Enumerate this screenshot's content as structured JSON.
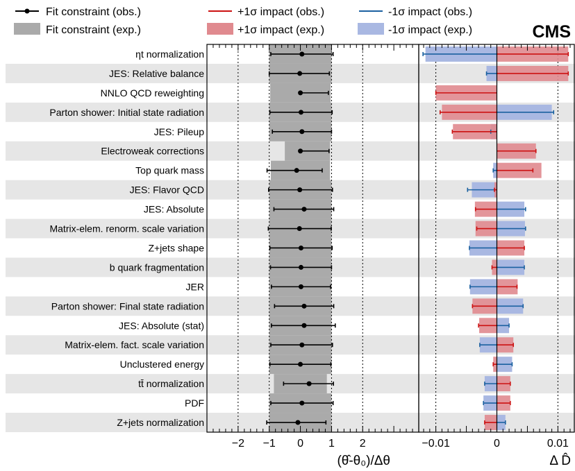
{
  "brand": "CMS",
  "legend": {
    "fit_obs": "Fit constraint (obs.)",
    "fit_exp": "Fit constraint (exp.)",
    "plus_obs": "+1σ impact (obs.)",
    "plus_exp": "+1σ impact (exp.)",
    "minus_obs": "-1σ impact (obs.)",
    "minus_exp": "-1σ impact (exp.)"
  },
  "colors": {
    "row_band": "#e6e6e6",
    "fit_exp": "#aaaaaa",
    "fit_obs": "#000000",
    "plus_obs": "#cc1111",
    "plus_exp": "#e08a8f",
    "minus_obs": "#1a60a0",
    "minus_exp": "#a9b8e2"
  },
  "chart_data": [
    {
      "type": "pull",
      "xlabel": "(θ̂-θ₀)/Δθ",
      "xlim": [
        -3,
        3.8
      ],
      "xticks": [
        -2,
        -1,
        0,
        1,
        2
      ],
      "grid_dotted_at": [
        -2,
        -1,
        1,
        2
      ],
      "parameters": [
        {
          "label": "ηt normalization",
          "pull": 0.05,
          "err_lo": 1.0,
          "err_hi": 1.0,
          "exp_lo": -1.0,
          "exp_hi": 1.0
        },
        {
          "label": "JES: Relative balance",
          "pull": -0.02,
          "err_lo": 0.98,
          "err_hi": 0.95,
          "exp_lo": -1.0,
          "exp_hi": 1.0
        },
        {
          "label": "NNLO QCD reweighting",
          "pull": 0.0,
          "err_lo": 0.0,
          "err_hi": 0.9,
          "exp_lo": -0.97,
          "exp_hi": 0.97
        },
        {
          "label": "Parton shower: Initial state radiation",
          "pull": 0.02,
          "err_lo": 1.0,
          "err_hi": 1.0,
          "exp_lo": -1.0,
          "exp_hi": 1.0
        },
        {
          "label": "JES: Pileup",
          "pull": 0.05,
          "err_lo": 0.95,
          "err_hi": 0.95,
          "exp_lo": -1.0,
          "exp_hi": 1.0
        },
        {
          "label": "Electroweak corrections",
          "pull": 0.0,
          "err_lo": 0.0,
          "err_hi": 0.92,
          "exp_lo": -0.5,
          "exp_hi": 0.95
        },
        {
          "label": "Top quark mass",
          "pull": -0.12,
          "err_lo": 0.95,
          "err_hi": 0.82,
          "exp_lo": -0.95,
          "exp_hi": 0.95
        },
        {
          "label": "JES: Flavor QCD",
          "pull": -0.02,
          "err_lo": 1.0,
          "err_hi": 1.05,
          "exp_lo": -1.0,
          "exp_hi": 1.0
        },
        {
          "label": "JES: Absolute",
          "pull": 0.12,
          "err_lo": 0.97,
          "err_hi": 0.95,
          "exp_lo": -1.0,
          "exp_hi": 1.0
        },
        {
          "label": "Matrix-elem. renorm. scale variation",
          "pull": -0.03,
          "err_lo": 1.0,
          "err_hi": 1.02,
          "exp_lo": -1.0,
          "exp_hi": 1.0
        },
        {
          "label": "Z+jets shape",
          "pull": 0.02,
          "err_lo": 1.0,
          "err_hi": 1.0,
          "exp_lo": -1.0,
          "exp_hi": 1.0
        },
        {
          "label": "b quark fragmentation",
          "pull": 0.02,
          "err_lo": 0.98,
          "err_hi": 0.98,
          "exp_lo": -1.0,
          "exp_hi": 1.0
        },
        {
          "label": "JER",
          "pull": 0.02,
          "err_lo": 0.95,
          "err_hi": 0.95,
          "exp_lo": -1.0,
          "exp_hi": 1.0
        },
        {
          "label": "Parton shower: Final state radiation",
          "pull": 0.12,
          "err_lo": 0.95,
          "err_hi": 0.95,
          "exp_lo": -1.0,
          "exp_hi": 1.0
        },
        {
          "label": "JES: Absolute (stat)",
          "pull": 0.12,
          "err_lo": 1.05,
          "err_hi": 1.0,
          "exp_lo": -1.0,
          "exp_hi": 1.0
        },
        {
          "label": "Matrix-elem. fact. scale variation",
          "pull": 0.05,
          "err_lo": 1.0,
          "err_hi": 0.98,
          "exp_lo": -1.0,
          "exp_hi": 1.0
        },
        {
          "label": "Unclustered energy",
          "pull": 0.0,
          "err_lo": 0.98,
          "err_hi": 0.98,
          "exp_lo": -1.0,
          "exp_hi": 1.0
        },
        {
          "label": "tt̄ normalization",
          "pull": 0.28,
          "err_lo": 0.82,
          "err_hi": 0.78,
          "exp_lo": -0.85,
          "exp_hi": 0.85
        },
        {
          "label": "PDF",
          "pull": 0.05,
          "err_lo": 1.0,
          "err_hi": 1.0,
          "exp_lo": -1.0,
          "exp_hi": 1.0
        },
        {
          "label": "Z+jets normalization",
          "pull": -0.08,
          "err_lo": 1.0,
          "err_hi": 0.9,
          "exp_lo": -1.0,
          "exp_hi": 1.0
        }
      ]
    },
    {
      "type": "impact",
      "xlabel": "Δ D̂",
      "xlim": [
        -0.0128,
        0.0128
      ],
      "xticks": [
        -0.01,
        0,
        0.01
      ],
      "xtick_labels": [
        "−0.01",
        "0",
        "0.01"
      ],
      "grid_dotted_at": [
        -0.01,
        0.01
      ],
      "impacts": [
        {
          "plus_exp": 0.0117,
          "minus_exp": -0.0117,
          "plus_obs": 0.0117,
          "minus_obs": -0.0121
        },
        {
          "plus_exp": 0.0117,
          "minus_exp": -0.0017,
          "plus_obs": 0.0117,
          "minus_obs": -0.0017
        },
        {
          "plus_exp": -0.01,
          "minus_exp": 0,
          "plus_obs": -0.01,
          "minus_obs": 0
        },
        {
          "plus_exp": -0.009,
          "minus_exp": 0.009,
          "plus_obs": -0.0093,
          "minus_obs": 0.0093
        },
        {
          "plus_exp": -0.0072,
          "minus_exp": -0.001,
          "plus_obs": -0.0073,
          "minus_obs": -0.001
        },
        {
          "plus_exp": 0.0064,
          "minus_exp": 0,
          "plus_obs": 0.0064,
          "minus_obs": 0
        },
        {
          "plus_exp": 0.0073,
          "minus_exp": -0.0006,
          "plus_obs": 0.0059,
          "minus_obs": -0.0006
        },
        {
          "plus_exp": -0.0004,
          "minus_exp": -0.0041,
          "plus_obs": -0.0004,
          "minus_obs": -0.0048
        },
        {
          "plus_exp": -0.0036,
          "minus_exp": 0.0045,
          "plus_obs": -0.0035,
          "minus_obs": 0.0047
        },
        {
          "plus_exp": -0.0035,
          "minus_exp": 0.0046,
          "plus_obs": -0.0033,
          "minus_obs": 0.0047
        },
        {
          "plus_exp": 0.0045,
          "minus_exp": -0.0045,
          "plus_obs": 0.0045,
          "minus_obs": -0.0045
        },
        {
          "plus_exp": -0.0008,
          "minus_exp": 0.0045,
          "plus_obs": -0.0008,
          "minus_obs": 0.0045
        },
        {
          "plus_exp": 0.0034,
          "minus_exp": -0.0044,
          "plus_obs": 0.0033,
          "minus_obs": -0.0044
        },
        {
          "plus_exp": -0.004,
          "minus_exp": 0.0043,
          "plus_obs": -0.004,
          "minus_obs": 0.0043
        },
        {
          "plus_exp": -0.0029,
          "minus_exp": 0.002,
          "plus_obs": -0.003,
          "minus_obs": 0.002
        },
        {
          "plus_exp": 0.0027,
          "minus_exp": -0.0028,
          "plus_obs": 0.0027,
          "minus_obs": -0.0028
        },
        {
          "plus_exp": -0.0006,
          "minus_exp": 0.0025,
          "plus_obs": -0.0006,
          "minus_obs": 0.0025
        },
        {
          "plus_exp": 0.0022,
          "minus_exp": -0.002,
          "plus_obs": 0.0022,
          "minus_obs": -0.002
        },
        {
          "plus_exp": 0.0022,
          "minus_exp": -0.0022,
          "plus_obs": 0.0022,
          "minus_obs": -0.0022
        },
        {
          "plus_exp": -0.002,
          "minus_exp": 0.0014,
          "plus_obs": -0.002,
          "minus_obs": 0.0014
        }
      ]
    }
  ]
}
